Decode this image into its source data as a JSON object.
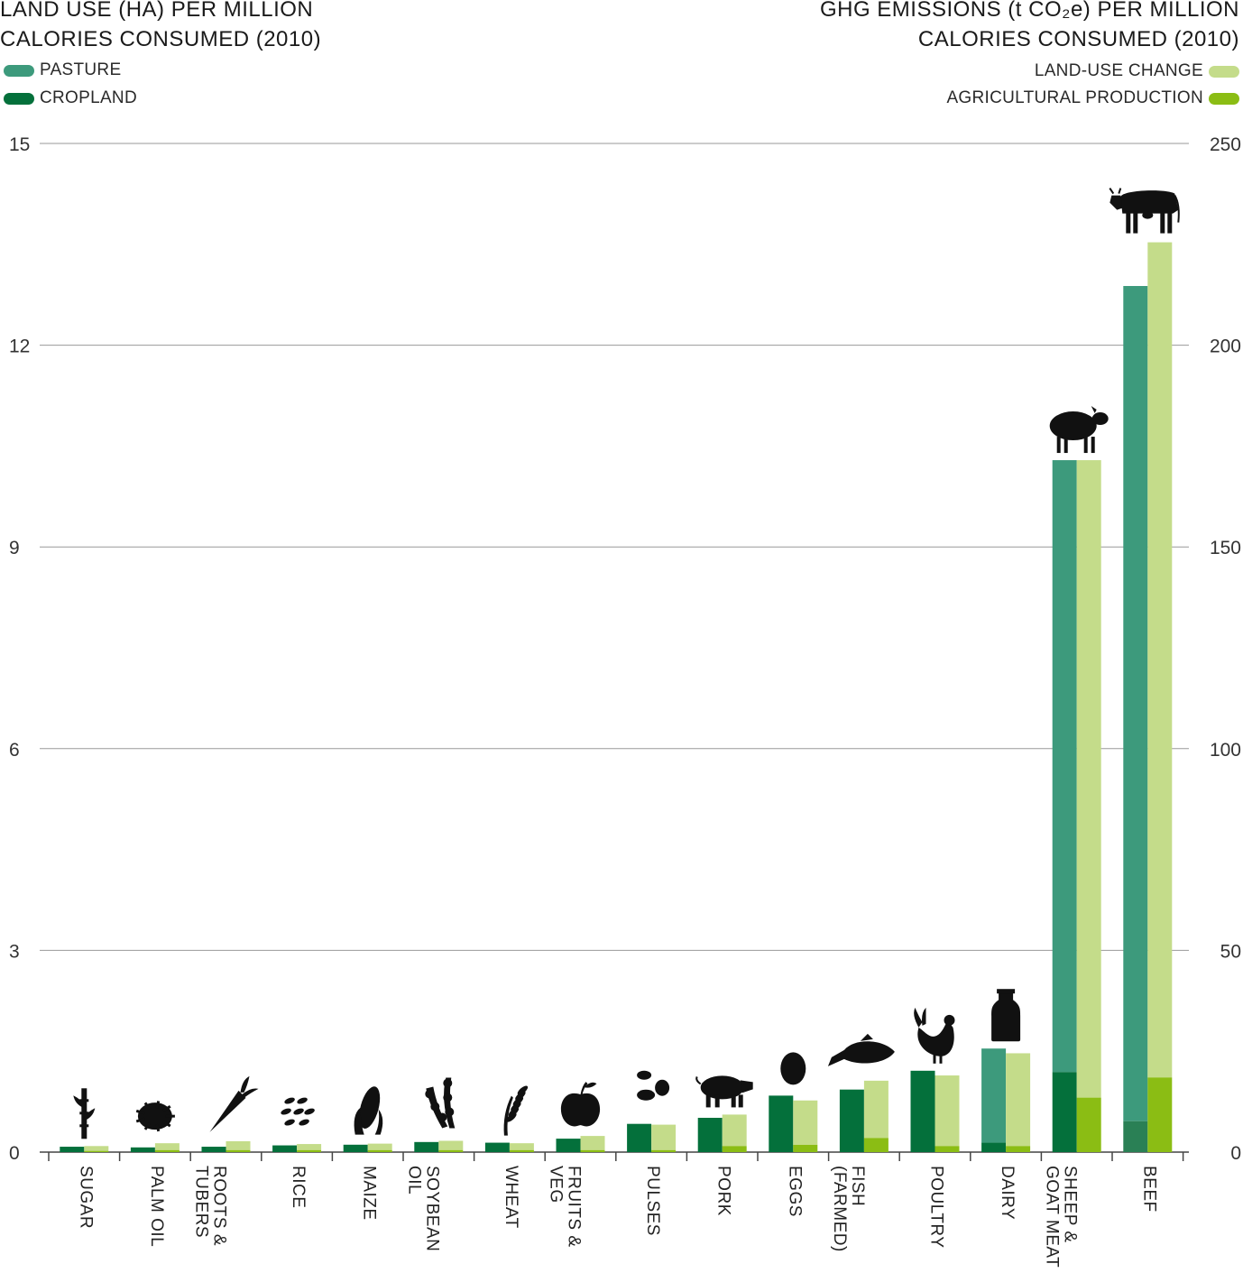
{
  "titles": {
    "left": [
      "LAND USE (HA) PER MILLION",
      "CALORIES CONSUMED (2010)"
    ],
    "right": [
      "GHG EMISSIONS (t CO₂e) PER MILLION",
      "CALORIES CONSUMED (2010)"
    ]
  },
  "legend": {
    "pasture": "PASTURE",
    "cropland": "CROPLAND",
    "land_use_change": "LAND-USE CHANGE",
    "agricultural_production": "AGRICULTURAL PRODUCTION"
  },
  "colors": {
    "pasture": "#3d9a7c",
    "cropland": "#04703b",
    "land_use_change": "#c4dc8a",
    "agricultural_production": "#8bbd14",
    "beef_cropland": "#2a8055",
    "grid": "#999999",
    "text": "#1a1a1a"
  },
  "chart_data": {
    "type": "bar",
    "categories": [
      "SUGAR",
      "PALM OIL",
      "ROOTS & TUBERS",
      "RICE",
      "MAIZE",
      "SOYBEAN OIL",
      "WHEAT",
      "FRUITS & VEG",
      "PULSES",
      "PORK",
      "EGGS",
      "FISH (FARMED)",
      "POULTRY",
      "DAIRY",
      "SHEEP & GOAT MEAT",
      "BEEF"
    ],
    "category_lines": [
      [
        "SUGAR"
      ],
      [
        "PALM OIL"
      ],
      [
        "ROOTS &",
        "TUBERS"
      ],
      [
        "RICE"
      ],
      [
        "MAIZE"
      ],
      [
        "SOYBEAN",
        "OIL"
      ],
      [
        "WHEAT"
      ],
      [
        "FRUITS &",
        "VEG"
      ],
      [
        "PULSES"
      ],
      [
        "PORK"
      ],
      [
        "EGGS"
      ],
      [
        "FISH",
        "(FARMED)"
      ],
      [
        "POULTRY"
      ],
      [
        "DAIRY"
      ],
      [
        "SHEEP &",
        "GOAT MEAT"
      ],
      [
        "BEEF"
      ]
    ],
    "icons": [
      "sugarcane-icon",
      "palm-fruit-icon",
      "carrot-icon",
      "rice-icon",
      "corn-icon",
      "soybean-icon",
      "wheat-icon",
      "apple-icon",
      "beans-icon",
      "pig-icon",
      "egg-icon",
      "fish-icon",
      "chicken-icon",
      "milk-bottle-icon",
      "sheep-icon",
      "cow-icon"
    ],
    "left_axis": {
      "label": "LAND USE (HA) PER MILLION CALORIES CONSUMED (2010)",
      "ylim": [
        0,
        15
      ],
      "ticks": [
        0,
        3,
        6,
        9,
        12,
        15
      ]
    },
    "right_axis": {
      "label": "GHG EMISSIONS (t CO2e) PER MILLION CALORIES CONSUMED (2010)",
      "ylim": [
        0,
        250
      ],
      "ticks": [
        0,
        50,
        100,
        150,
        200,
        250
      ]
    },
    "grid": true,
    "land_use_series": [
      {
        "name": "CROPLAND",
        "values": [
          0.08,
          0.07,
          0.08,
          0.1,
          0.11,
          0.15,
          0.14,
          0.2,
          0.42,
          0.51,
          0.84,
          0.93,
          1.21,
          0.14,
          1.19,
          0.46
        ]
      },
      {
        "name": "PASTURE",
        "values": [
          0,
          0,
          0,
          0,
          0,
          0,
          0,
          0,
          0,
          0,
          0,
          0,
          0,
          1.4,
          9.1,
          12.42
        ]
      }
    ],
    "ghg_series": [
      {
        "name": "AGRICULTURAL PRODUCTION",
        "values": [
          0.3,
          0.5,
          0.5,
          0.5,
          0.5,
          0.5,
          0.5,
          0.5,
          0.5,
          1.5,
          1.8,
          3.5,
          1.5,
          1.5,
          13.5,
          18.5
        ]
      },
      {
        "name": "LAND-USE CHANGE",
        "values": [
          1.2,
          1.7,
          2.2,
          1.5,
          1.6,
          2.3,
          1.7,
          3.5,
          6.3,
          7.8,
          11.0,
          14.2,
          17.5,
          23.0,
          158.0,
          207.0
        ]
      }
    ]
  }
}
